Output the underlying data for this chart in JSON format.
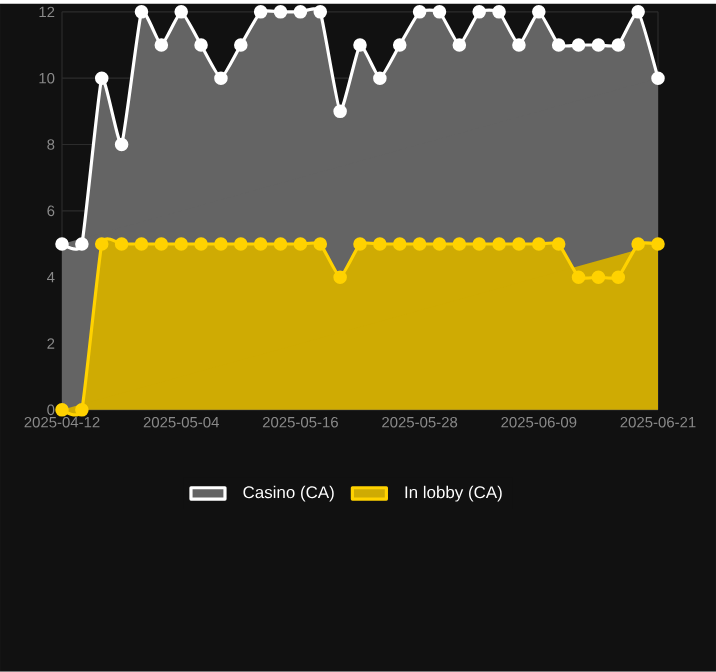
{
  "chart_data": {
    "type": "area",
    "categories": [
      "2025-04-12",
      null,
      null,
      null,
      null,
      null,
      "2025-05-04",
      null,
      null,
      null,
      null,
      null,
      "2025-05-16",
      null,
      null,
      null,
      null,
      null,
      "2025-05-28",
      null,
      null,
      null,
      null,
      null,
      "2025-06-09",
      null,
      null,
      null,
      null,
      null,
      "2025-06-21"
    ],
    "series": [
      {
        "name": "In lobby (CA)",
        "color": "#ffd200",
        "values": [
          0,
          0,
          5,
          5,
          5,
          5,
          5,
          5,
          5,
          5,
          5,
          5,
          5,
          5,
          4,
          5,
          5,
          5,
          5,
          5,
          5,
          5,
          5,
          5,
          5,
          5,
          4,
          4,
          4,
          5,
          5
        ]
      },
      {
        "name": "Casino (CA)",
        "color": "#ffffff",
        "values": [
          5,
          5,
          10,
          8,
          12,
          11,
          12,
          11,
          10,
          11,
          12,
          12,
          12,
          12,
          9,
          11,
          10,
          11,
          12,
          12,
          11,
          12,
          12,
          11,
          12,
          11,
          11,
          11,
          11,
          12,
          10
        ]
      }
    ],
    "ylim": [
      0,
      12
    ],
    "yticks": [
      0,
      2,
      4,
      6,
      8,
      10,
      12
    ],
    "grid": true,
    "legend": "bottom",
    "marker": "circle",
    "line_style": "solid"
  }
}
